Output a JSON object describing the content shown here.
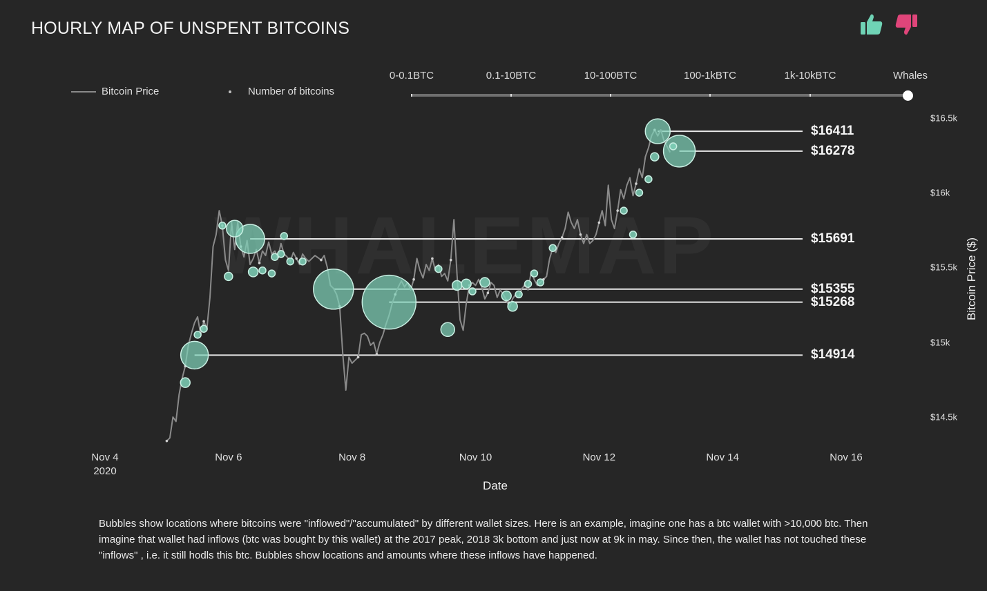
{
  "header": {
    "title": "HOURLY MAP OF UNSPENT BITCOINS",
    "watermark": "WHALEMAP",
    "like_icon": "thumbs-up-icon",
    "dislike_icon": "thumbs-down-icon"
  },
  "legend": {
    "price_label": "Bitcoin Price",
    "count_label": "Number of bitcoins"
  },
  "slider": {
    "labels": [
      "0-0.1BTC",
      "0.1-10BTC",
      "10-100BTC",
      "100-1kBTC",
      "1k-10kBTC",
      "Whales"
    ],
    "selected": "Whales"
  },
  "description": "Bubbles show locations where bitcoins were \"inflowed\"/\"accumulated\" by different wallet sizes. Here is an example, imagine one has a btc wallet with >10,000 btc. Then imagine that wallet had inflows (btc was bought by this wallet) at the 2017 peak, 2018 3k bottom and just now at 9k in may. Since then, the wallet has not touched these \"inflows\" , i.e. it still hodls this btc. Bubbles show locations and amounts where these inflows have happened.",
  "colors": {
    "background": "#262626",
    "price_line": "#8a8a8a",
    "bubble_fill": "#7fd1b9",
    "bubble_stroke": "#c9efe3",
    "level_line": "#e8e8e8",
    "thumbs_up": "#6fd3b5",
    "thumbs_down": "#e0457a"
  },
  "chart_data": {
    "type": "scatter",
    "xlabel": "Date",
    "ylabel": "Bitcoin Price ($)",
    "x_ticks": [
      {
        "label": "Nov 4",
        "sub": "2020",
        "day": 4
      },
      {
        "label": "Nov 6",
        "sub": "",
        "day": 6
      },
      {
        "label": "Nov 8",
        "sub": "",
        "day": 8
      },
      {
        "label": "Nov 10",
        "sub": "",
        "day": 10
      },
      {
        "label": "Nov 12",
        "sub": "",
        "day": 12
      },
      {
        "label": "Nov 14",
        "sub": "",
        "day": 14
      },
      {
        "label": "Nov 16",
        "sub": "",
        "day": 16
      }
    ],
    "xlim": [
      4,
      16
    ],
    "y_ticks": [
      {
        "label": "$16.5k",
        "value": 16500
      },
      {
        "label": "$16k",
        "value": 16000
      },
      {
        "label": "$15.5k",
        "value": 15500
      },
      {
        "label": "$15k",
        "value": 15000
      },
      {
        "label": "$14.5k",
        "value": 14500
      }
    ],
    "ylim": [
      14400,
      16550
    ],
    "price_series": {
      "name": "Bitcoin Price",
      "points": [
        [
          5.0,
          14340
        ],
        [
          5.05,
          14360
        ],
        [
          5.1,
          14500
        ],
        [
          5.15,
          14470
        ],
        [
          5.2,
          14650
        ],
        [
          5.25,
          14760
        ],
        [
          5.3,
          14840
        ],
        [
          5.35,
          14980
        ],
        [
          5.4,
          15060
        ],
        [
          5.45,
          15130
        ],
        [
          5.5,
          15170
        ],
        [
          5.55,
          15050
        ],
        [
          5.6,
          15140
        ],
        [
          5.65,
          15090
        ],
        [
          5.7,
          15300
        ],
        [
          5.75,
          15640
        ],
        [
          5.8,
          15720
        ],
        [
          5.85,
          15880
        ],
        [
          5.9,
          15780
        ],
        [
          5.95,
          15550
        ],
        [
          6.0,
          15480
        ],
        [
          6.05,
          15800
        ],
        [
          6.1,
          15620
        ],
        [
          6.15,
          15800
        ],
        [
          6.2,
          15640
        ],
        [
          6.25,
          15570
        ],
        [
          6.3,
          15680
        ],
        [
          6.35,
          15520
        ],
        [
          6.4,
          15560
        ],
        [
          6.45,
          15620
        ],
        [
          6.5,
          15530
        ],
        [
          6.55,
          15610
        ],
        [
          6.6,
          15580
        ],
        [
          6.65,
          15670
        ],
        [
          6.7,
          15590
        ],
        [
          6.75,
          15610
        ],
        [
          6.8,
          15570
        ],
        [
          6.85,
          15660
        ],
        [
          6.9,
          15590
        ],
        [
          6.95,
          15570
        ],
        [
          7.0,
          15540
        ],
        [
          7.05,
          15600
        ],
        [
          7.1,
          15560
        ],
        [
          7.15,
          15520
        ],
        [
          7.2,
          15590
        ],
        [
          7.25,
          15560
        ],
        [
          7.3,
          15540
        ],
        [
          7.4,
          15580
        ],
        [
          7.5,
          15550
        ],
        [
          7.55,
          15580
        ],
        [
          7.6,
          15500
        ],
        [
          7.65,
          15380
        ],
        [
          7.7,
          15360
        ],
        [
          7.75,
          15320
        ],
        [
          7.8,
          15240
        ],
        [
          7.85,
          14920
        ],
        [
          7.9,
          14680
        ],
        [
          7.95,
          14900
        ],
        [
          8.0,
          14860
        ],
        [
          8.05,
          14880
        ],
        [
          8.1,
          14900
        ],
        [
          8.15,
          15050
        ],
        [
          8.2,
          15060
        ],
        [
          8.25,
          15040
        ],
        [
          8.3,
          14980
        ],
        [
          8.35,
          15000
        ],
        [
          8.4,
          14920
        ],
        [
          8.45,
          15000
        ],
        [
          8.5,
          15050
        ],
        [
          8.55,
          15120
        ],
        [
          8.6,
          15180
        ],
        [
          8.65,
          15260
        ],
        [
          8.7,
          15320
        ],
        [
          8.75,
          15370
        ],
        [
          8.8,
          15410
        ],
        [
          8.85,
          15370
        ],
        [
          8.9,
          15400
        ],
        [
          8.95,
          15350
        ],
        [
          9.0,
          15420
        ],
        [
          9.05,
          15560
        ],
        [
          9.1,
          15480
        ],
        [
          9.15,
          15430
        ],
        [
          9.2,
          15520
        ],
        [
          9.25,
          15480
        ],
        [
          9.3,
          15560
        ],
        [
          9.35,
          15480
        ],
        [
          9.4,
          15520
        ],
        [
          9.45,
          15440
        ],
        [
          9.5,
          15460
        ],
        [
          9.55,
          15410
        ],
        [
          9.6,
          15550
        ],
        [
          9.65,
          15820
        ],
        [
          9.7,
          15450
        ],
        [
          9.75,
          15150
        ],
        [
          9.8,
          15080
        ],
        [
          9.85,
          15260
        ],
        [
          9.9,
          15380
        ],
        [
          9.95,
          15400
        ],
        [
          10.0,
          15380
        ],
        [
          10.05,
          15420
        ],
        [
          10.1,
          15370
        ],
        [
          10.15,
          15290
        ],
        [
          10.2,
          15330
        ],
        [
          10.25,
          15400
        ],
        [
          10.3,
          15380
        ],
        [
          10.35,
          15300
        ],
        [
          10.4,
          15350
        ],
        [
          10.45,
          15320
        ],
        [
          10.5,
          15280
        ],
        [
          10.55,
          15230
        ],
        [
          10.6,
          15290
        ],
        [
          10.65,
          15320
        ],
        [
          10.7,
          15300
        ],
        [
          10.75,
          15360
        ],
        [
          10.8,
          15380
        ],
        [
          10.85,
          15350
        ],
        [
          10.9,
          15470
        ],
        [
          10.95,
          15420
        ],
        [
          11.0,
          15380
        ],
        [
          11.05,
          15400
        ],
        [
          11.1,
          15420
        ],
        [
          11.15,
          15440
        ],
        [
          11.2,
          15560
        ],
        [
          11.25,
          15630
        ],
        [
          11.3,
          15600
        ],
        [
          11.35,
          15660
        ],
        [
          11.4,
          15700
        ],
        [
          11.45,
          15760
        ],
        [
          11.5,
          15870
        ],
        [
          11.55,
          15800
        ],
        [
          11.6,
          15760
        ],
        [
          11.65,
          15820
        ],
        [
          11.7,
          15720
        ],
        [
          11.75,
          15660
        ],
        [
          11.8,
          15720
        ],
        [
          11.85,
          15660
        ],
        [
          11.9,
          15680
        ],
        [
          11.95,
          15720
        ],
        [
          12.0,
          15800
        ],
        [
          12.05,
          15880
        ],
        [
          12.1,
          15780
        ],
        [
          12.15,
          16050
        ],
        [
          12.2,
          15820
        ],
        [
          12.25,
          15760
        ],
        [
          12.3,
          15880
        ],
        [
          12.35,
          16020
        ],
        [
          12.4,
          15960
        ],
        [
          12.45,
          16050
        ],
        [
          12.5,
          16100
        ],
        [
          12.55,
          15980
        ],
        [
          12.6,
          16060
        ],
        [
          12.65,
          16160
        ],
        [
          12.7,
          16100
        ],
        [
          12.75,
          16240
        ],
        [
          12.8,
          16300
        ],
        [
          12.85,
          16380
        ],
        [
          12.9,
          16420
        ],
        [
          12.95,
          16380
        ],
        [
          13.0,
          16420
        ],
        [
          13.05,
          16350
        ],
        [
          13.1,
          16310
        ],
        [
          13.15,
          16270
        ]
      ]
    },
    "bubbles": [
      {
        "x": 5.45,
        "y": 14914,
        "r": 20
      },
      {
        "x": 8.6,
        "y": 15268,
        "r": 39
      },
      {
        "x": 7.7,
        "y": 15355,
        "r": 29
      },
      {
        "x": 6.35,
        "y": 15691,
        "r": 21
      },
      {
        "x": 6.1,
        "y": 15760,
        "r": 12
      },
      {
        "x": 12.95,
        "y": 16411,
        "r": 18
      },
      {
        "x": 13.3,
        "y": 16278,
        "r": 23
      },
      {
        "x": 9.55,
        "y": 15085,
        "r": 10
      },
      {
        "x": 5.3,
        "y": 14730,
        "r": 7
      },
      {
        "x": 5.5,
        "y": 15050,
        "r": 5
      },
      {
        "x": 5.6,
        "y": 15090,
        "r": 5
      },
      {
        "x": 5.9,
        "y": 15780,
        "r": 5
      },
      {
        "x": 6.0,
        "y": 15440,
        "r": 6
      },
      {
        "x": 6.4,
        "y": 15470,
        "r": 7
      },
      {
        "x": 6.55,
        "y": 15480,
        "r": 5
      },
      {
        "x": 6.7,
        "y": 15460,
        "r": 5
      },
      {
        "x": 6.75,
        "y": 15570,
        "r": 5
      },
      {
        "x": 6.85,
        "y": 15590,
        "r": 5
      },
      {
        "x": 6.9,
        "y": 15710,
        "r": 5
      },
      {
        "x": 7.0,
        "y": 15540,
        "r": 5
      },
      {
        "x": 7.2,
        "y": 15540,
        "r": 5
      },
      {
        "x": 9.4,
        "y": 15490,
        "r": 5
      },
      {
        "x": 9.7,
        "y": 15380,
        "r": 7
      },
      {
        "x": 9.85,
        "y": 15390,
        "r": 7
      },
      {
        "x": 9.95,
        "y": 15340,
        "r": 5
      },
      {
        "x": 10.15,
        "y": 15400,
        "r": 7
      },
      {
        "x": 10.5,
        "y": 15310,
        "r": 7
      },
      {
        "x": 10.6,
        "y": 15240,
        "r": 7
      },
      {
        "x": 10.7,
        "y": 15320,
        "r": 5
      },
      {
        "x": 10.85,
        "y": 15390,
        "r": 5
      },
      {
        "x": 10.95,
        "y": 15460,
        "r": 5
      },
      {
        "x": 11.05,
        "y": 15400,
        "r": 5
      },
      {
        "x": 11.25,
        "y": 15630,
        "r": 5
      },
      {
        "x": 12.4,
        "y": 15880,
        "r": 5
      },
      {
        "x": 12.55,
        "y": 15720,
        "r": 5
      },
      {
        "x": 12.65,
        "y": 16000,
        "r": 5
      },
      {
        "x": 12.8,
        "y": 16090,
        "r": 5
      },
      {
        "x": 12.9,
        "y": 16240,
        "r": 6
      },
      {
        "x": 13.2,
        "y": 16310,
        "r": 5
      }
    ],
    "levels": [
      {
        "label": "$16411",
        "value": 16411,
        "x_start": 12.95
      },
      {
        "label": "$16278",
        "value": 16278,
        "x_start": 13.3
      },
      {
        "label": "$15691",
        "value": 15691,
        "x_start": 6.35
      },
      {
        "label": "$15355",
        "value": 15355,
        "x_start": 7.7
      },
      {
        "label": "$15268",
        "value": 15268,
        "x_start": 8.6
      },
      {
        "label": "$14914",
        "value": 14914,
        "x_start": 5.45
      }
    ]
  }
}
